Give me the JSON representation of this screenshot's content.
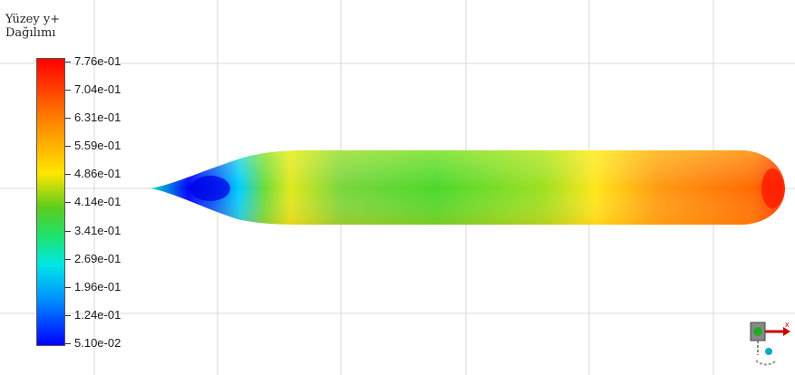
{
  "legend": {
    "title_line1": "Yüzey y+",
    "title_line2": "Dağılımı",
    "ticks": [
      "7.76e-01",
      "7.04e-01",
      "6.31e-01",
      "5.59e-01",
      "4.86e-01",
      "4.14e-01",
      "3.41e-01",
      "2.69e-01",
      "1.96e-01",
      "1.24e-01",
      "5.10e-02"
    ]
  },
  "colors": {
    "max": "#ff0000",
    "high": "#ff7a00",
    "mid_high": "#ffe600",
    "mid": "#5ccc1e",
    "mid_low": "#00e6e6",
    "low": "#0000ff",
    "grid": "#d8d8d8"
  },
  "triad": {
    "axis_x": "x",
    "icon": "axis-triad-icon"
  }
}
